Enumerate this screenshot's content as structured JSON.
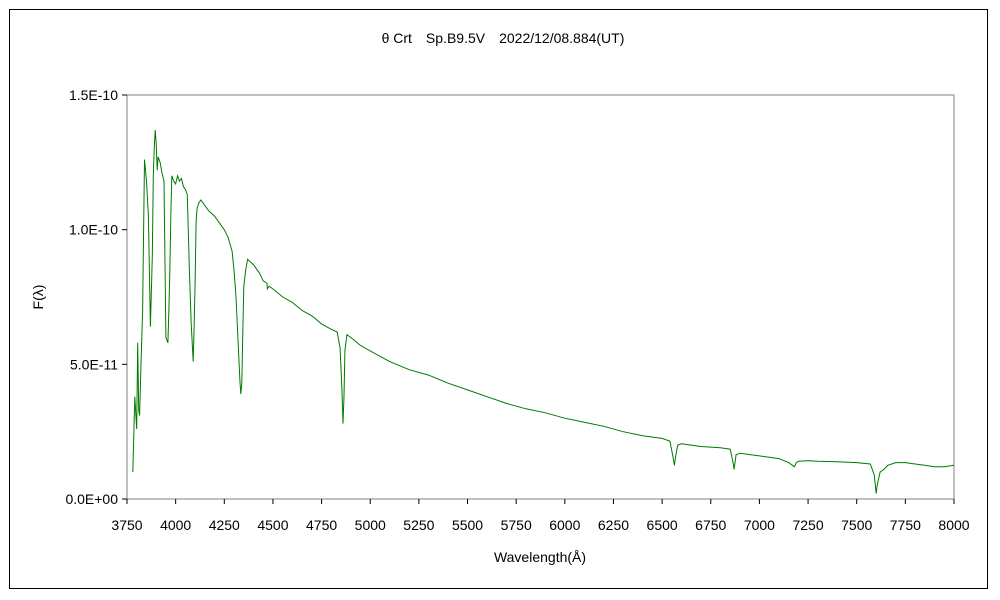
{
  "chart_data": {
    "type": "line",
    "title": "θ Crt　Sp.B9.5V　2022/12/08.884(UT)",
    "xlabel": "Wavelength(Å)",
    "ylabel": "F(λ)",
    "xlim": [
      3750,
      8000
    ],
    "ylim": [
      0,
      1.5e-10
    ],
    "x_ticks": [
      3750,
      4000,
      4250,
      4500,
      4750,
      5000,
      5250,
      5500,
      5750,
      6000,
      6250,
      6500,
      6750,
      7000,
      7250,
      7500,
      7750,
      8000
    ],
    "x_tick_labels": [
      "3750",
      "4000",
      "4250",
      "4500",
      "4750",
      "5000",
      "5250",
      "5500",
      "5750",
      "6000",
      "6250",
      "6500",
      "6750",
      "7000",
      "7250",
      "7500",
      "7750",
      "8000"
    ],
    "y_ticks": [
      0,
      5e-11,
      1e-10,
      1.5e-10
    ],
    "y_tick_labels": [
      "0.0E+00",
      "5.0E-11",
      "1.0E-10",
      "1.5E-10"
    ],
    "grid": false,
    "legend": "none",
    "line_color": "#007a00",
    "series": [
      {
        "x": [
          3780,
          3790,
          3800,
          3805,
          3810,
          3815,
          3820,
          3830,
          3840,
          3850,
          3860,
          3870,
          3880,
          3885,
          3890,
          3895,
          3900,
          3905,
          3910,
          3920,
          3930,
          3940,
          3950,
          3960,
          3965,
          3970,
          3975,
          3980,
          3990,
          4000,
          4010,
          4020,
          4030,
          4040,
          4050,
          4060,
          4070,
          4080,
          4090,
          4095,
          4100,
          4105,
          4110,
          4120,
          4130,
          4150,
          4170,
          4200,
          4230,
          4250,
          4270,
          4290,
          4300,
          4310,
          4320,
          4330,
          4335,
          4340,
          4345,
          4350,
          4360,
          4370,
          4400,
          4430,
          4450,
          4470,
          4471,
          4480,
          4500,
          4550,
          4600,
          4650,
          4700,
          4750,
          4800,
          4830,
          4845,
          4855,
          4860,
          4865,
          4870,
          4880,
          4900,
          4950,
          5000,
          5050,
          5100,
          5200,
          5300,
          5400,
          5500,
          5600,
          5700,
          5800,
          5900,
          6000,
          6100,
          6200,
          6300,
          6400,
          6500,
          6540,
          6555,
          6563,
          6570,
          6580,
          6600,
          6700,
          6800,
          6850,
          6865,
          6870,
          6880,
          6900,
          7000,
          7100,
          7150,
          7180,
          7190,
          7200,
          7250,
          7300,
          7400,
          7500,
          7570,
          7590,
          7600,
          7605,
          7620,
          7640,
          7660,
          7680,
          7700,
          7750,
          7800,
          7850,
          7900,
          7950,
          8000
        ],
        "y": [
          1e-11,
          3.8e-11,
          2.6e-11,
          5.8e-11,
          3.3e-11,
          3.1e-11,
          4.5e-11,
          7e-11,
          1.26e-10,
          1.18e-10,
          1.05e-10,
          6.4e-11,
          9e-11,
          1.2e-10,
          1.3e-10,
          1.37e-10,
          1.32e-10,
          1.22e-10,
          1.27e-10,
          1.25e-10,
          1.21e-10,
          1.18e-10,
          6e-11,
          5.8e-11,
          6.9e-11,
          8.4e-11,
          1.05e-10,
          1.2e-10,
          1.18e-10,
          1.17e-10,
          1.2e-10,
          1.18e-10,
          1.19e-10,
          1.16e-10,
          1.15e-10,
          1.13e-10,
          8.6e-11,
          6.5e-11,
          5.1e-11,
          6.4e-11,
          8e-11,
          1.03e-10,
          1.08e-10,
          1.1e-10,
          1.11e-10,
          1.09e-10,
          1.07e-10,
          1.05e-10,
          1.02e-10,
          1e-10,
          9.7e-11,
          9.2e-11,
          8.5e-11,
          7.5e-11,
          6e-11,
          4.4e-11,
          3.9e-11,
          4.3e-11,
          6.2e-11,
          7.9e-11,
          8.5e-11,
          8.9e-11,
          8.7e-11,
          8.4e-11,
          8.1e-11,
          8e-11,
          7.8e-11,
          7.9e-11,
          7.8e-11,
          7.5e-11,
          7.3e-11,
          7e-11,
          6.8e-11,
          6.5e-11,
          6.3e-11,
          6.2e-11,
          5.6e-11,
          4e-11,
          2.8e-11,
          3.8e-11,
          5.5e-11,
          6.1e-11,
          6e-11,
          5.7e-11,
          5.5e-11,
          5.3e-11,
          5.1e-11,
          4.8e-11,
          4.6e-11,
          4.3e-11,
          4.05e-11,
          3.8e-11,
          3.55e-11,
          3.35e-11,
          3.2e-11,
          3e-11,
          2.85e-11,
          2.7e-11,
          2.5e-11,
          2.35e-11,
          2.25e-11,
          2.15e-11,
          1.6e-11,
          1.25e-11,
          1.6e-11,
          2e-11,
          2.05e-11,
          1.95e-11,
          1.9e-11,
          1.85e-11,
          1.35e-11,
          1.1e-11,
          1.65e-11,
          1.7e-11,
          1.6e-11,
          1.5e-11,
          1.35e-11,
          1.2e-11,
          1.35e-11,
          1.4e-11,
          1.42e-11,
          1.4e-11,
          1.38e-11,
          1.35e-11,
          1.3e-11,
          9e-12,
          2e-12,
          5e-12,
          1e-11,
          1.1e-11,
          1.25e-11,
          1.3e-11,
          1.35e-11,
          1.35e-11,
          1.3e-11,
          1.25e-11,
          1.2e-11,
          1.2e-11,
          1.25e-11
        ]
      }
    ]
  }
}
